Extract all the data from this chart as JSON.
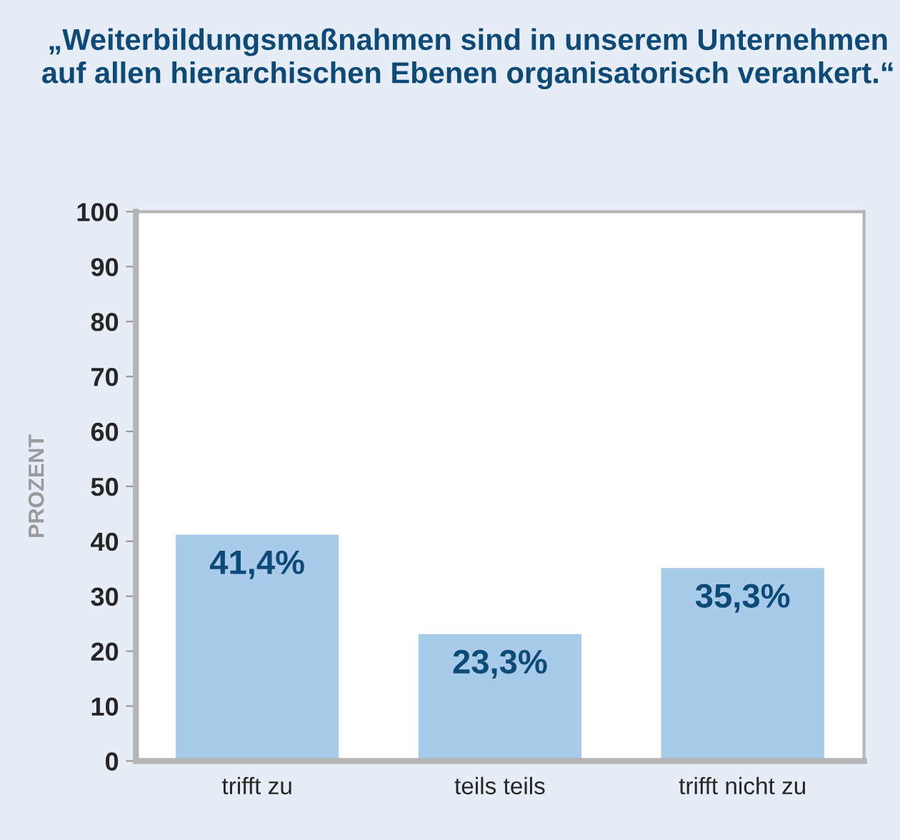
{
  "chart_data": {
    "type": "bar",
    "title": "„Weiterbildungsmaßnahmen sind in unserem Unternehmen auf allen hierarchischen Ebenen organisatorisch verankert.“",
    "ylabel": "PROZENT",
    "categories": [
      "trifft zu",
      "teils teils",
      "trifft nicht zu"
    ],
    "values": [
      41.4,
      23.3,
      35.3
    ],
    "value_labels": [
      "41,4%",
      "23,3%",
      "35,3%"
    ],
    "color": "#a9cbea",
    "ylim": [
      0,
      100
    ],
    "yticks": [
      0,
      10,
      20,
      30,
      40,
      50,
      60,
      70,
      80,
      90,
      100
    ],
    "grid": false,
    "legend": false
  }
}
